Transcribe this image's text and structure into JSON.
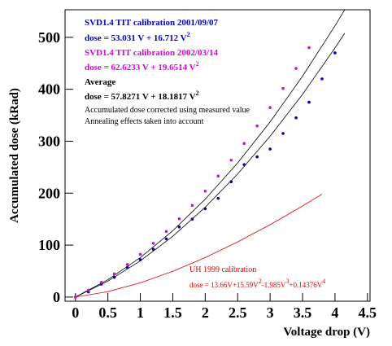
{
  "chart_data": {
    "type": "scatter",
    "xlabel": "Voltage drop (V)",
    "ylabel": "Accumulated dose (kRad)",
    "xlim": [
      -0.16,
      4.54
    ],
    "ylim": [
      -8,
      553
    ],
    "xticks": [
      0,
      0.5,
      1,
      1.5,
      2,
      2.5,
      3,
      3.5,
      4,
      4.5
    ],
    "yticks": [
      0,
      100,
      200,
      300,
      400,
      500
    ],
    "series": [
      {
        "style": "line",
        "color": "#000000",
        "x": [
          0,
          0.5,
          1,
          1.5,
          2,
          2.5,
          3,
          3.5,
          4,
          4.15
        ],
        "values": [
          0,
          30.7,
          69.7,
          117.1,
          172.9,
          237.0,
          309.5,
          390.3,
          479.5,
          507.9
        ]
      },
      {
        "style": "line",
        "color": "#000000",
        "x": [
          0,
          0.5,
          1,
          1.5,
          2,
          2.5,
          3,
          3.5,
          4,
          4.15
        ],
        "values": [
          0,
          33.4,
          76.0,
          127.6,
          188.4,
          258.2,
          337.1,
          425.1,
          522.2,
          553.1
        ]
      },
      {
        "style": "line",
        "color": "#e00000",
        "x": [
          0,
          0.5,
          1,
          1.5,
          2,
          2.5,
          3,
          3.5,
          3.8
        ],
        "values": [
          0,
          10.5,
          27.4,
          49.6,
          76.1,
          106.2,
          139.3,
          175.3,
          198.1
        ]
      },
      {
        "style": "points",
        "color": "#0000cc",
        "x": [
          0,
          0.2,
          0.4,
          0.6,
          0.8,
          1.0,
          1.2,
          1.4,
          1.6,
          1.8,
          2.0,
          2.2,
          2.4,
          2.6,
          2.8,
          3.0,
          3.2,
          3.4,
          3.6,
          3.8,
          4.0
        ],
        "values": [
          0,
          10,
          25,
          38,
          57,
          72,
          92,
          112,
          135,
          150,
          170,
          190,
          222,
          255,
          270,
          285,
          315,
          345,
          375,
          420,
          470
        ]
      },
      {
        "style": "points",
        "color": "#e000e0",
        "x": [
          0,
          0.2,
          0.4,
          0.6,
          0.8,
          1.0,
          1.2,
          1.4,
          1.6,
          1.8,
          2.0,
          2.2,
          2.4,
          2.6,
          2.8,
          3.0,
          3.2,
          3.4,
          3.6
        ],
        "values": [
          0,
          13.3,
          28.2,
          44.6,
          62.7,
          82.3,
          103.4,
          126.2,
          150.5,
          176.4,
          203.9,
          232.9,
          263.5,
          295.7,
          329.4,
          364.7,
          401.6,
          440.1,
          480.1
        ]
      }
    ],
    "annotations": [
      {
        "color": "#0000cc",
        "parts": [
          {
            "text": "SVD1.4 TIT calibration 2001/09/07"
          }
        ]
      },
      {
        "color": "#0000cc",
        "parts": [
          {
            "text": "dose = 53.031 V + 16.712 V"
          },
          {
            "sup": "2"
          }
        ]
      },
      {
        "color": "#e000e0",
        "parts": [
          {
            "text": "SVD1.4 TIT calibration 2002/03/14"
          }
        ]
      },
      {
        "color": "#e000e0",
        "parts": [
          {
            "text": "dose = 62.6233 V + 19.6514 V"
          },
          {
            "sup": "2"
          }
        ]
      },
      {
        "color": "#000000",
        "parts": [
          {
            "text": "Average"
          }
        ]
      },
      {
        "color": "#000000",
        "parts": [
          {
            "text": "dose = 57.8271 V + 18.1817 V"
          },
          {
            "sup": "2"
          }
        ]
      },
      {
        "color": "#000000",
        "parts": [
          {
            "text": "Accumulated dose corrected using measured value"
          }
        ]
      },
      {
        "color": "#000000",
        "parts": [
          {
            "text": "Annealing effects taken into account"
          }
        ]
      },
      {
        "color": "#e00000",
        "parts": [
          {
            "text": "UH 1999 calibration"
          }
        ]
      },
      {
        "color": "#e00000",
        "parts": [
          {
            "text": "dose = 13.66V+15.59V"
          },
          {
            "sup": "2"
          },
          {
            "text": "-1.985V"
          },
          {
            "sup": "3"
          },
          {
            "text": "+0.14376V"
          },
          {
            "sup": "4"
          }
        ]
      }
    ]
  }
}
